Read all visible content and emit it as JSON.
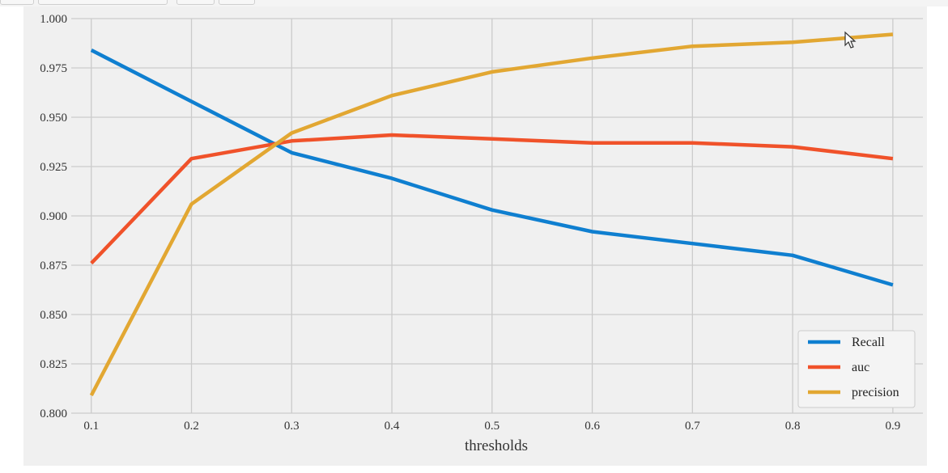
{
  "window": {
    "top_tabs": [
      "",
      "",
      "",
      ""
    ]
  },
  "chart_data": {
    "type": "line",
    "title": "",
    "xlabel": "thresholds",
    "ylabel": "",
    "x": [
      0.1,
      0.2,
      0.3,
      0.4,
      0.5,
      0.6,
      0.7,
      0.8,
      0.9
    ],
    "x_tick_labels": [
      "0.1",
      "0.2",
      "0.3",
      "0.4",
      "0.5",
      "0.6",
      "0.7",
      "0.8",
      "0.9"
    ],
    "y_tick_labels": [
      "0.800",
      "0.825",
      "0.850",
      "0.875",
      "0.900",
      "0.925",
      "0.950",
      "0.975",
      "1.000"
    ],
    "y_ticks": [
      0.8,
      0.825,
      0.85,
      0.875,
      0.9,
      0.925,
      0.95,
      0.975,
      1.0
    ],
    "xlim": [
      0.08,
      0.93
    ],
    "ylim": [
      0.8,
      1.0
    ],
    "grid": true,
    "legend_position": "bottom-right",
    "series": [
      {
        "name": "Recall",
        "color": "#0f7fd0",
        "values": [
          0.984,
          0.958,
          0.932,
          0.919,
          0.903,
          0.892,
          0.886,
          0.88,
          0.865
        ]
      },
      {
        "name": "auc",
        "color": "#f0522a",
        "values": [
          0.876,
          0.929,
          0.938,
          0.941,
          0.939,
          0.937,
          0.937,
          0.935,
          0.929
        ]
      },
      {
        "name": "precision",
        "color": "#e2a732",
        "values": [
          0.809,
          0.906,
          0.942,
          0.961,
          0.973,
          0.98,
          0.986,
          0.988,
          0.992
        ]
      }
    ]
  }
}
